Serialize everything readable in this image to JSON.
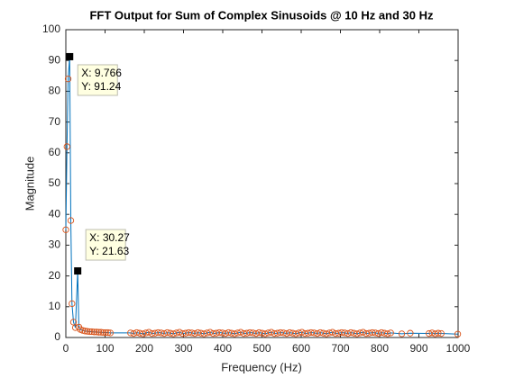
{
  "chart_data": {
    "type": "line",
    "title": "FFT Output for Sum of Complex Sinusoids @ 10 Hz and 30 Hz",
    "x_label": "Frequency (Hz)",
    "y_label": "Magnitude",
    "x": [
      0,
      2.93,
      5.86,
      9.766,
      12.7,
      15.63,
      19.53,
      24.41,
      30.27,
      33.2,
      37.11,
      42.97,
      48.83,
      54.69,
      60.55,
      66.41,
      72.27,
      78.13,
      83.98,
      89.84,
      95.7,
      101.6,
      107.4,
      113.3,
      165.0,
      172.8,
      180.6,
      188.4,
      196.2,
      204.0,
      211.8,
      219.6,
      227.4,
      235.2,
      243.0,
      250.8,
      258.6,
      266.4,
      274.2,
      282.0,
      289.8,
      297.6,
      305.4,
      313.2,
      321.0,
      328.8,
      336.6,
      344.4,
      352.2,
      360.0,
      367.8,
      375.6,
      383.4,
      391.2,
      399.0,
      406.8,
      414.6,
      422.4,
      430.2,
      438.0,
      445.8,
      453.6,
      461.4,
      469.2,
      477.0,
      484.8,
      492.6,
      500.4,
      508.2,
      516.0,
      523.8,
      531.6,
      539.4,
      547.2,
      555.0,
      562.8,
      570.6,
      578.4,
      586.2,
      594.0,
      601.8,
      609.6,
      617.4,
      625.2,
      633.0,
      640.8,
      648.6,
      656.4,
      664.2,
      672.0,
      679.8,
      687.6,
      695.4,
      703.2,
      711.0,
      718.8,
      726.6,
      734.4,
      742.2,
      750.0,
      757.8,
      765.6,
      773.4,
      781.2,
      789.0,
      796.8,
      804.6,
      812.4,
      820.2,
      828.0,
      856.4,
      877.9,
      925.8,
      933.6,
      941.4,
      949.2,
      957.0,
      999.0
    ],
    "series": [
      {
        "line_color": "#0072bd",
        "marker_color": "#d95319",
        "values": [
          35,
          62,
          84,
          91.24,
          38,
          11,
          5,
          3.2,
          21.63,
          3.4,
          2.6,
          2.3,
          2.1,
          2.0,
          1.9,
          1.9,
          1.8,
          1.8,
          1.7,
          1.7,
          1.6,
          1.6,
          1.6,
          1.5,
          1.5,
          1.3,
          1.6,
          1.4,
          1.2,
          1.5,
          1.7,
          1.3,
          1.4,
          1.6,
          1.5,
          1.3,
          1.6,
          1.4,
          1.2,
          1.5,
          1.7,
          1.3,
          1.4,
          1.6,
          1.5,
          1.3,
          1.6,
          1.4,
          1.2,
          1.5,
          1.7,
          1.3,
          1.4,
          1.6,
          1.5,
          1.3,
          1.6,
          1.4,
          1.2,
          1.5,
          1.7,
          1.3,
          1.4,
          1.6,
          1.5,
          1.3,
          1.6,
          1.4,
          1.2,
          1.5,
          1.7,
          1.3,
          1.4,
          1.6,
          1.5,
          1.3,
          1.6,
          1.4,
          1.2,
          1.5,
          1.7,
          1.3,
          1.4,
          1.6,
          1.5,
          1.3,
          1.6,
          1.4,
          1.2,
          1.5,
          1.7,
          1.3,
          1.4,
          1.6,
          1.5,
          1.3,
          1.6,
          1.4,
          1.2,
          1.5,
          1.7,
          1.3,
          1.4,
          1.6,
          1.5,
          1.3,
          1.6,
          1.4,
          1.2,
          1.5,
          1.2,
          1.4,
          1.3,
          1.5,
          1.2,
          1.4,
          1.3,
          1.1
        ]
      }
    ],
    "datatips": [
      {
        "x": 9.766,
        "y": 91.24,
        "x_text": "X: 9.766",
        "y_text": "Y: 91.24"
      },
      {
        "x": 30.27,
        "y": 21.63,
        "x_text": "X: 30.27",
        "y_text": "Y: 21.63"
      }
    ],
    "xlim": [
      0,
      1000
    ],
    "xticks": [
      0,
      100,
      200,
      300,
      400,
      500,
      600,
      700,
      800,
      900,
      1000
    ],
    "ylim": [
      0,
      100
    ],
    "yticks": [
      0,
      10,
      20,
      30,
      40,
      50,
      60,
      70,
      80,
      90,
      100
    ]
  }
}
